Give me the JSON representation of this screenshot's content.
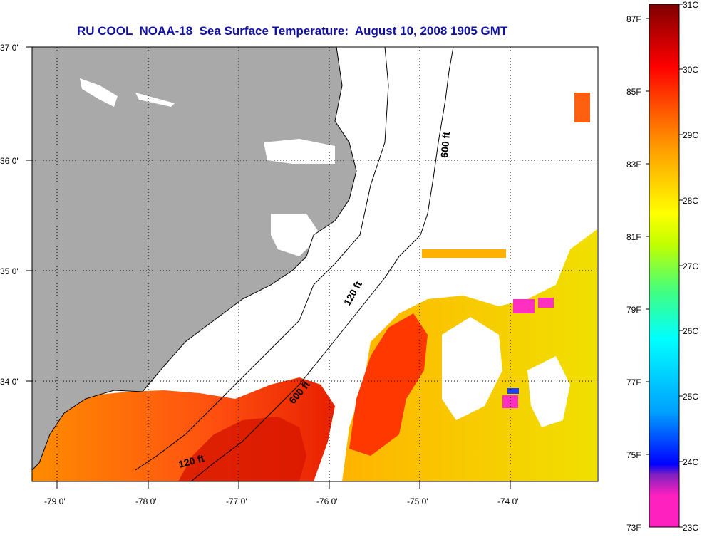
{
  "title": "RU COOL  NOAA-18  Sea Surface Temperature:  August 10, 2008 1905 GMT",
  "latitude_labels": [
    "37 0'",
    "36 0'",
    "35 0'",
    "34 0'"
  ],
  "longitude_labels": [
    "-79 0'",
    "-78 0'",
    "-77 0'",
    "-76 0'",
    "-75 0'",
    "-74 0'"
  ],
  "isobath_labels": [
    "600 ft",
    "120 ft",
    "600 ft",
    "120 ft"
  ],
  "colorbar": {
    "fahrenheit_labels": [
      "87F",
      "85F",
      "83F",
      "81F",
      "79F",
      "77F",
      "75F",
      "73F"
    ],
    "celsius_labels": [
      "31C",
      "30C",
      "29C",
      "28C",
      "27C",
      "26C",
      "25C",
      "24C",
      "23C"
    ],
    "colors": [
      "#ff20c0",
      "#ff20c0",
      "#8020c0",
      "#0000ff",
      "#00a0ff",
      "#00ffff",
      "#40ff80",
      "#c0ff00",
      "#ffff00",
      "#ffa000",
      "#ff4000",
      "#ff0000",
      "#800000"
    ]
  },
  "colors": {
    "land": "#a9a9a9",
    "title_text": "#1010a8",
    "no_data": "#ffffff"
  }
}
